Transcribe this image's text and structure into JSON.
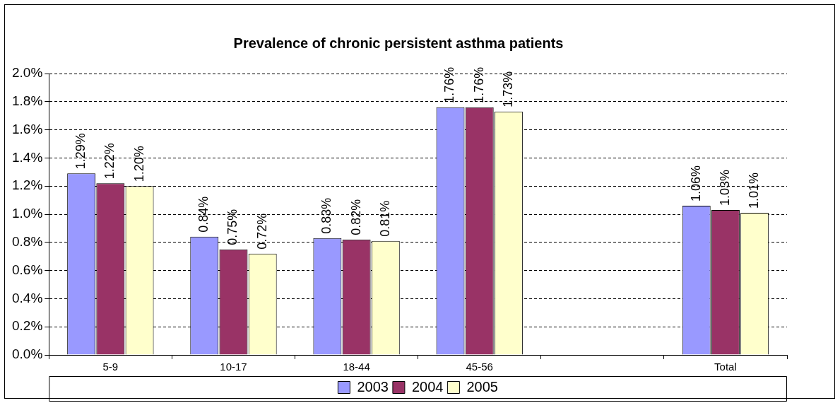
{
  "chart_data": {
    "type": "bar",
    "title": "Prevalence of chronic persistent asthma patients",
    "categories": [
      "5-9",
      "10-17",
      "18-44",
      "45-56",
      null,
      "Total"
    ],
    "series": [
      {
        "name": "2003",
        "color": "#9999ff",
        "values": [
          1.29,
          0.84,
          0.83,
          1.76,
          null,
          1.06
        ],
        "value_labels": [
          "1.29%",
          "0.84%",
          "0.83%",
          "1.76%",
          null,
          "1.06%"
        ]
      },
      {
        "name": "2004",
        "color": "#993366",
        "values": [
          1.22,
          0.75,
          0.82,
          1.76,
          null,
          1.03
        ],
        "value_labels": [
          "1.22%",
          "0.75%",
          "0.82%",
          "1.76%",
          null,
          "1.03%"
        ]
      },
      {
        "name": "2005",
        "color": "#ffffcc",
        "values": [
          1.2,
          0.72,
          0.81,
          1.73,
          null,
          1.01
        ],
        "value_labels": [
          "1.20%",
          "0.72%",
          "0.81%",
          "1.73%",
          null,
          "1.01%"
        ]
      }
    ],
    "ylim": [
      0,
      2.0
    ],
    "yticks": [
      {
        "value": 0,
        "label": "0.0%"
      },
      {
        "value": 0.2,
        "label": "0.2%"
      },
      {
        "value": 0.4,
        "label": "0.4%"
      },
      {
        "value": 0.6,
        "label": "0.6%"
      },
      {
        "value": 0.8,
        "label": "0.8%"
      },
      {
        "value": 1.0,
        "label": "1.0%"
      },
      {
        "value": 1.2,
        "label": "1.2%"
      },
      {
        "value": 1.4,
        "label": "1.4%"
      },
      {
        "value": 1.6,
        "label": "1.6%"
      },
      {
        "value": 1.8,
        "label": "1.8%"
      },
      {
        "value": 2.0,
        "label": "2.0%"
      }
    ],
    "grid": "y",
    "legend": "bottom"
  }
}
